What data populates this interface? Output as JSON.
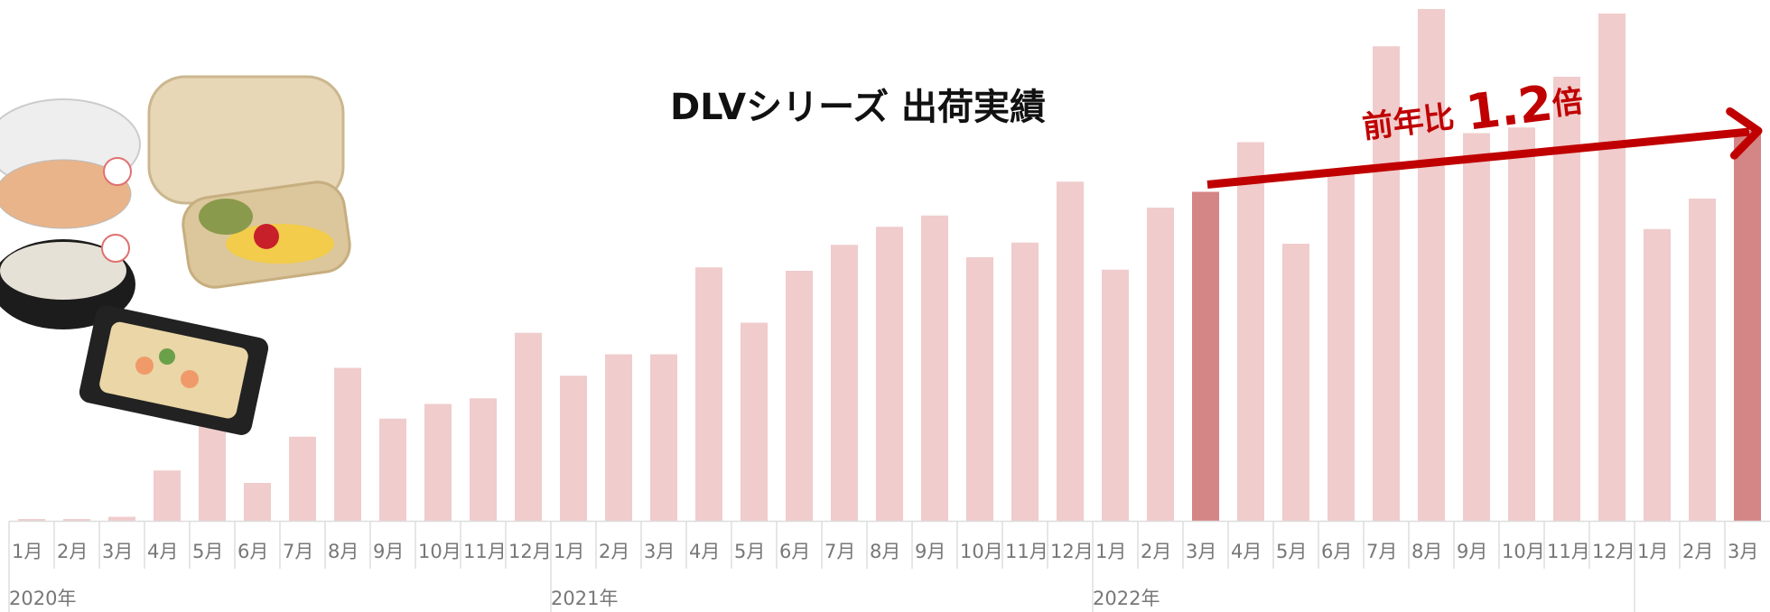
{
  "chart_data": {
    "type": "bar",
    "title": "DLVシリーズ 出荷実績",
    "categories": [
      "1月",
      "2月",
      "3月",
      "4月",
      "5月",
      "6月",
      "7月",
      "8月",
      "9月",
      "10月",
      "11月",
      "12月",
      "1月",
      "2月",
      "3月",
      "4月",
      "5月",
      "6月",
      "7月",
      "8月",
      "9月",
      "10月",
      "11月",
      "12月",
      "1月",
      "2月",
      "3月",
      "4月",
      "5月",
      "6月",
      "7月",
      "8月",
      "9月",
      "10月",
      "11月",
      "12月",
      "1月",
      "2月",
      "3月"
    ],
    "years": [
      "2020年",
      "2021年",
      "2022年"
    ],
    "values": [
      2,
      2,
      4,
      45,
      92,
      34,
      75,
      136,
      91,
      104,
      109,
      167,
      129,
      148,
      148,
      225,
      176,
      222,
      245,
      261,
      271,
      234,
      247,
      301,
      223,
      278,
      292,
      336,
      246,
      312,
      421,
      454,
      344,
      349,
      394,
      450,
      259,
      286,
      346
    ],
    "colors": [
      "#f0cccc",
      "#f0cccc",
      "#f0cccc",
      "#f0cccc",
      "#f0cccc",
      "#f0cccc",
      "#f0cccc",
      "#f0cccc",
      "#f0cccc",
      "#f0cccc",
      "#f0cccc",
      "#f0cccc",
      "#f0cccc",
      "#f0cccc",
      "#f0cccc",
      "#f0cccc",
      "#f0cccc",
      "#f0cccc",
      "#f0cccc",
      "#f0cccc",
      "#f0cccc",
      "#f0cccc",
      "#f0cccc",
      "#f0cccc",
      "#f0cccc",
      "#f0cccc",
      "#d48585",
      "#f0cccc",
      "#f0cccc",
      "#f0cccc",
      "#f0cccc",
      "#f0cccc",
      "#f0cccc",
      "#f0cccc",
      "#f0cccc",
      "#f0cccc",
      "#f0cccc",
      "#f0cccc",
      "#d48585"
    ],
    "ylim": [
      0,
      460
    ],
    "annotation": {
      "prefix": "前年比",
      "value": 1.2,
      "suffix": "倍",
      "color": "#c00000"
    }
  }
}
